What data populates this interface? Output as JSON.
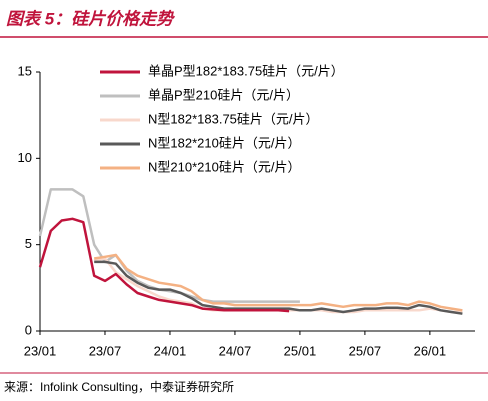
{
  "chart_data": {
    "type": "line",
    "title": "图表 5：硅片价格走势",
    "source": "来源：Infolink Consulting，中泰证券研究所",
    "x": [
      "23/01",
      "23/02",
      "23/03",
      "23/04",
      "23/05",
      "23/06",
      "23/07",
      "23/08",
      "23/09",
      "23/10",
      "23/11",
      "23/12",
      "24/01",
      "24/02",
      "24/03",
      "24/04",
      "24/05",
      "24/06",
      "24/07",
      "24/08",
      "24/09",
      "24/10",
      "24/11",
      "24/12",
      "25/01",
      "25/02",
      "25/03",
      "25/04",
      "25/05",
      "25/06",
      "25/07",
      "25/08",
      "25/09",
      "25/10",
      "25/11",
      "25/12",
      "26/01",
      "26/02",
      "26/03",
      "26/04"
    ],
    "xticks": [
      "23/01",
      "23/07",
      "24/01",
      "24/07",
      "25/01",
      "25/07",
      "26/01"
    ],
    "ylim": [
      0,
      15
    ],
    "yticks": [
      0,
      5,
      10,
      15
    ],
    "series": [
      {
        "name": "单晶P型182*183.75硅片（元/片）",
        "color": "#c0143c",
        "values": [
          3.7,
          5.8,
          6.4,
          6.5,
          6.3,
          3.2,
          2.9,
          3.3,
          2.7,
          2.2,
          2.0,
          1.8,
          1.7,
          1.6,
          1.5,
          1.3,
          1.25,
          1.2,
          1.2,
          1.2,
          1.2,
          1.2,
          1.2,
          1.15,
          null,
          null,
          null,
          null,
          null,
          null,
          null,
          null,
          null,
          null,
          null,
          null,
          null,
          null,
          null,
          null
        ]
      },
      {
        "name": "单晶P型210硅片（元/片）",
        "color": "#bfbfbf",
        "values": [
          5.5,
          8.2,
          8.2,
          8.2,
          7.8,
          5.0,
          4.0,
          4.4,
          3.5,
          2.9,
          2.6,
          2.4,
          2.3,
          2.2,
          2.0,
          1.8,
          1.7,
          1.7,
          1.7,
          1.7,
          1.7,
          1.7,
          1.7,
          1.7,
          1.7,
          null,
          null,
          null,
          null,
          null,
          null,
          null,
          null,
          null,
          null,
          null,
          null,
          null,
          null,
          null
        ]
      },
      {
        "name": "N型182*183.75硅片（元/片）",
        "color": "#f8d8cc",
        "values": [
          null,
          null,
          null,
          null,
          null,
          4.1,
          4.2,
          3.4,
          3.0,
          2.6,
          2.3,
          2.0,
          1.8,
          1.7,
          1.6,
          1.3,
          1.2,
          1.2,
          1.2,
          1.2,
          1.2,
          1.2,
          1.2,
          1.2,
          1.2,
          1.2,
          1.2,
          1.1,
          1.1,
          1.1,
          1.2,
          1.2,
          1.2,
          1.2,
          1.2,
          1.2,
          1.3,
          1.2,
          1.1,
          1.1
        ]
      },
      {
        "name": "N型182*210硅片（元/片）",
        "color": "#595959",
        "values": [
          null,
          null,
          null,
          null,
          null,
          4.0,
          4.0,
          3.9,
          3.2,
          2.8,
          2.5,
          2.4,
          2.4,
          2.2,
          1.9,
          1.5,
          1.4,
          1.3,
          1.3,
          1.3,
          1.3,
          1.3,
          1.3,
          1.3,
          1.2,
          1.2,
          1.3,
          1.2,
          1.1,
          1.2,
          1.3,
          1.3,
          1.35,
          1.35,
          1.3,
          1.5,
          1.4,
          1.2,
          1.1,
          1.0
        ]
      },
      {
        "name": "N型210*210硅片（元/片）",
        "color": "#f4b183",
        "values": [
          null,
          null,
          null,
          null,
          null,
          4.2,
          4.3,
          4.4,
          3.6,
          3.2,
          3.0,
          2.8,
          2.7,
          2.6,
          2.3,
          1.8,
          1.6,
          1.6,
          1.5,
          1.5,
          1.5,
          1.5,
          1.5,
          1.5,
          1.5,
          1.5,
          1.6,
          1.5,
          1.4,
          1.5,
          1.5,
          1.5,
          1.6,
          1.6,
          1.5,
          1.7,
          1.6,
          1.4,
          1.3,
          1.2
        ]
      }
    ]
  }
}
